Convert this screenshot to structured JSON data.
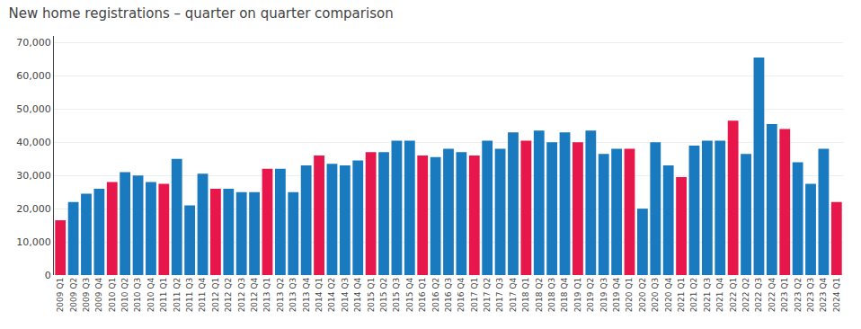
{
  "chart_data": {
    "type": "bar",
    "title": "New home registrations – quarter on quarter comparison",
    "categories": [
      "2009 Q1",
      "2009 Q2",
      "2009 Q3",
      "2009 Q4",
      "2010 Q1",
      "2010 Q2",
      "2010 Q3",
      "2010 Q4",
      "2011 Q1",
      "2011 Q2",
      "2011 Q3",
      "2011 Q4",
      "2012 Q1",
      "2012 Q2",
      "2012 Q3",
      "2012 Q4",
      "2013 Q1",
      "2013 Q2",
      "2013 Q3",
      "2013 Q4",
      "2014 Q1",
      "2014 Q2",
      "2014 Q3",
      "2014 Q4",
      "2015 Q1",
      "2015 Q2",
      "2015 Q3",
      "2015 Q4",
      "2016 Q1",
      "2016 Q2",
      "2016 Q3",
      "2016 Q4",
      "2017 Q1",
      "2017 Q2",
      "2017 Q3",
      "2017 Q4",
      "2018 Q1",
      "2018 Q2",
      "2018 Q3",
      "2018 Q4",
      "2019 Q1",
      "2019 Q2",
      "2019 Q3",
      "2019 Q4",
      "2020 Q1",
      "2020 Q2",
      "2020 Q3",
      "2020 Q4",
      "2021 Q1",
      "2021 Q2",
      "2021 Q3",
      "2021 Q4",
      "2022 Q1",
      "2022 Q2",
      "2022 Q3",
      "2022 Q4",
      "2023 Q1",
      "2023 Q2",
      "2023 Q3",
      "2023 Q4",
      "2024 Q1"
    ],
    "values": [
      16500,
      22000,
      24500,
      26000,
      28000,
      31000,
      30000,
      28000,
      27500,
      35000,
      21000,
      30500,
      26000,
      26000,
      25000,
      25000,
      32000,
      32000,
      25000,
      33000,
      36000,
      33500,
      33000,
      34500,
      37000,
      37000,
      40500,
      40500,
      36000,
      35500,
      38000,
      37000,
      36000,
      40500,
      38000,
      43000,
      40500,
      43500,
      40000,
      43000,
      40000,
      43500,
      36500,
      38000,
      38000,
      20000,
      40000,
      33000,
      29500,
      39000,
      40500,
      40500,
      46500,
      36500,
      65500,
      45500,
      44000,
      34000,
      27500,
      38000,
      22000
    ],
    "colors": [
      "#e8174b",
      "#1a7abf",
      "#1a7abf",
      "#1a7abf",
      "#e8174b",
      "#1a7abf",
      "#1a7abf",
      "#1a7abf",
      "#e8174b",
      "#1a7abf",
      "#1a7abf",
      "#1a7abf",
      "#e8174b",
      "#1a7abf",
      "#1a7abf",
      "#1a7abf",
      "#e8174b",
      "#1a7abf",
      "#1a7abf",
      "#1a7abf",
      "#e8174b",
      "#1a7abf",
      "#1a7abf",
      "#1a7abf",
      "#e8174b",
      "#1a7abf",
      "#1a7abf",
      "#1a7abf",
      "#e8174b",
      "#1a7abf",
      "#1a7abf",
      "#1a7abf",
      "#e8174b",
      "#1a7abf",
      "#1a7abf",
      "#1a7abf",
      "#e8174b",
      "#1a7abf",
      "#1a7abf",
      "#1a7abf",
      "#e8174b",
      "#1a7abf",
      "#1a7abf",
      "#1a7abf",
      "#e8174b",
      "#1a7abf",
      "#1a7abf",
      "#1a7abf",
      "#e8174b",
      "#1a7abf",
      "#1a7abf",
      "#1a7abf",
      "#e8174b",
      "#1a7abf",
      "#1a7abf",
      "#1a7abf",
      "#e8174b",
      "#1a7abf",
      "#1a7abf",
      "#1a7abf",
      "#e8174b"
    ],
    "ylim": [
      0,
      72000
    ],
    "yticks": [
      0,
      {
        "value": 10000,
        "label": "10,000"
      },
      {
        "value": 20000,
        "label": "20,000"
      },
      {
        "value": 30000,
        "label": "30,000"
      },
      {
        "value": 40000,
        "label": "40,000"
      },
      {
        "value": 50000,
        "label": "50,000"
      },
      {
        "value": 60000,
        "label": "60,000"
      },
      {
        "value": 70000,
        "label": "70,000"
      }
    ],
    "grid": true
  }
}
